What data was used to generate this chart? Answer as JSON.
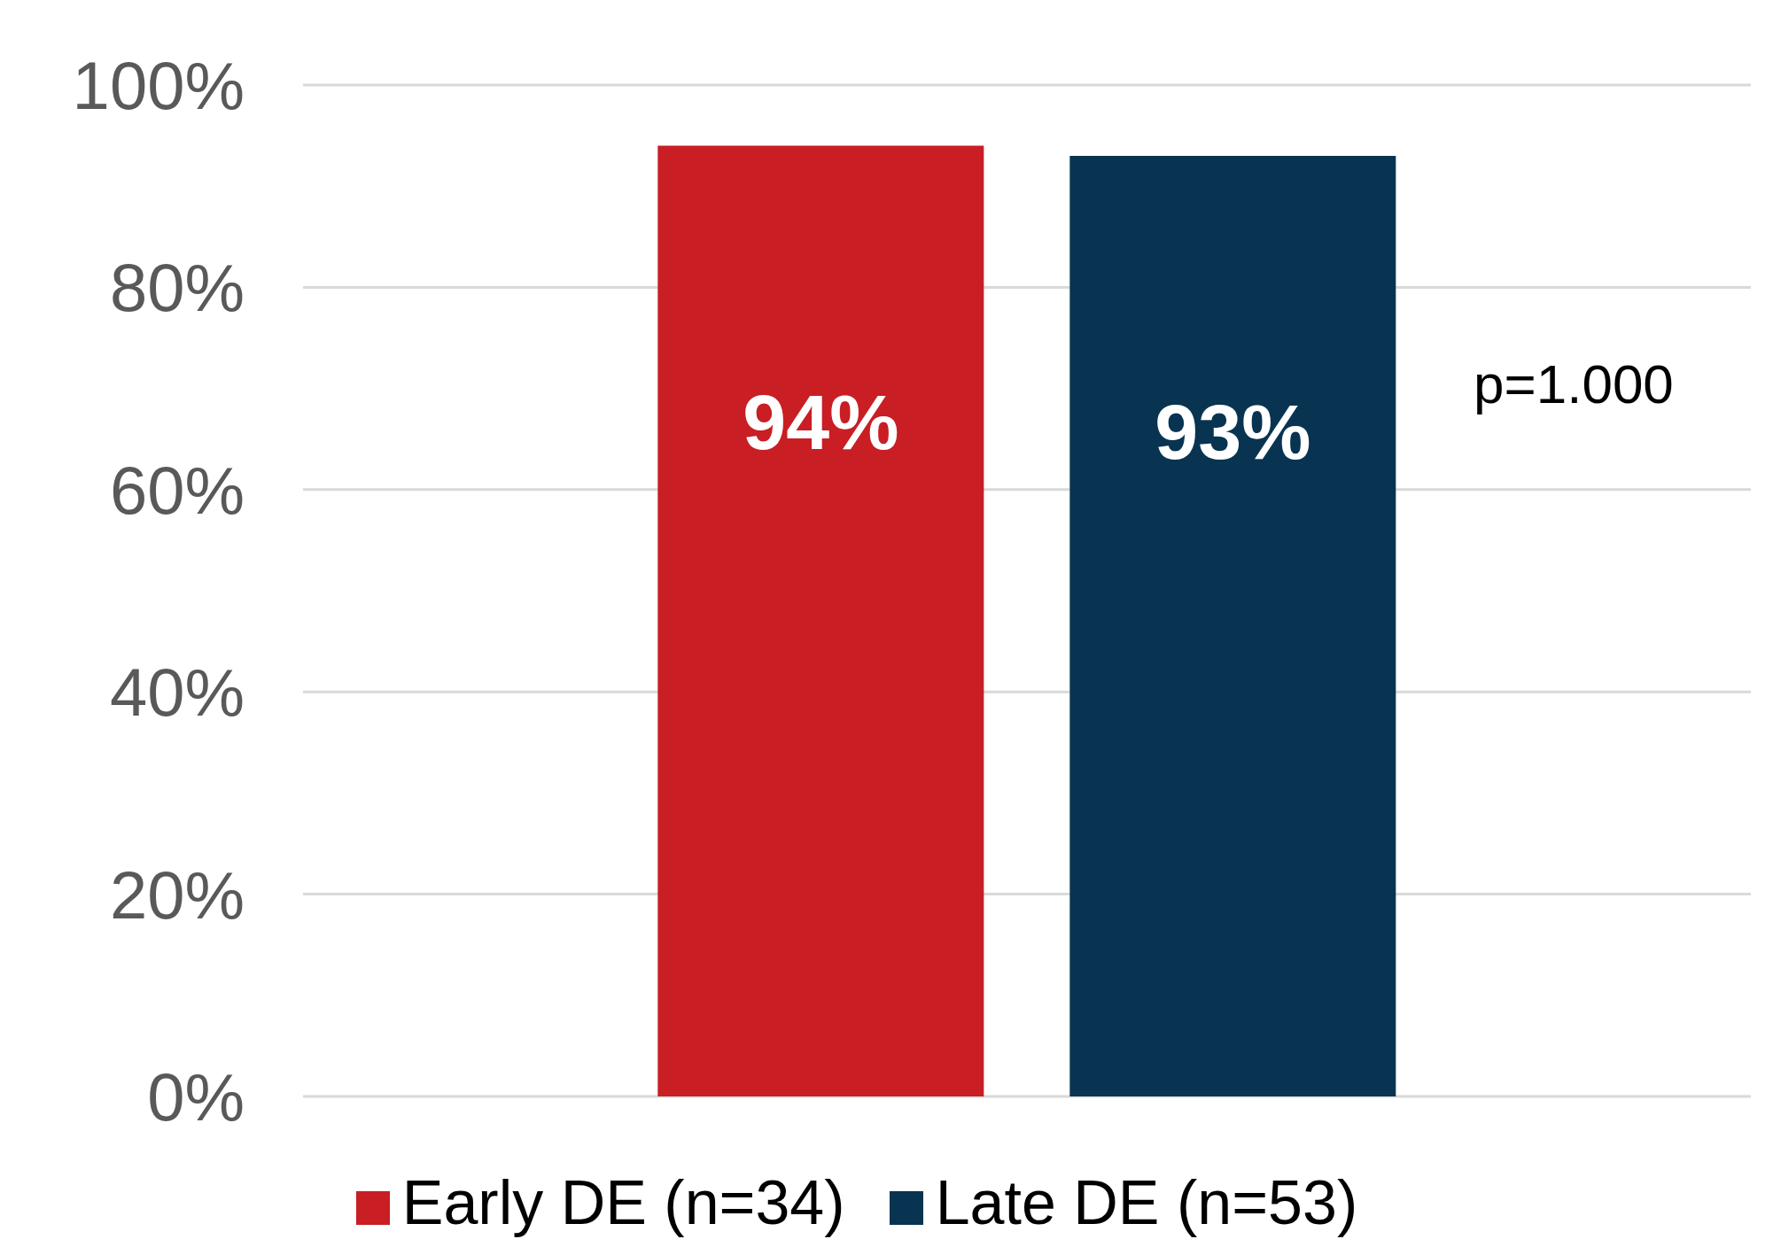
{
  "chart_data": {
    "type": "bar",
    "categories": [
      null
    ],
    "series": [
      {
        "name": "Early DE (n=34)",
        "color": "#c81e24",
        "values": [
          94
        ],
        "value_labels": [
          "94%"
        ]
      },
      {
        "name": "Late DE (n=53)",
        "color": "#083452",
        "values": [
          93
        ],
        "value_labels": [
          "93%"
        ]
      }
    ],
    "ylim": [
      0,
      100
    ],
    "yticks": [
      {
        "value": 0,
        "label": "0%"
      },
      {
        "value": 20,
        "label": "20%"
      },
      {
        "value": 40,
        "label": "40%"
      },
      {
        "value": 60,
        "label": "60%"
      },
      {
        "value": 80,
        "label": "80%"
      },
      {
        "value": 100,
        "label": "100%"
      }
    ],
    "grid": "y",
    "legend": "bottom",
    "annotations": [
      "p=1.000"
    ]
  }
}
